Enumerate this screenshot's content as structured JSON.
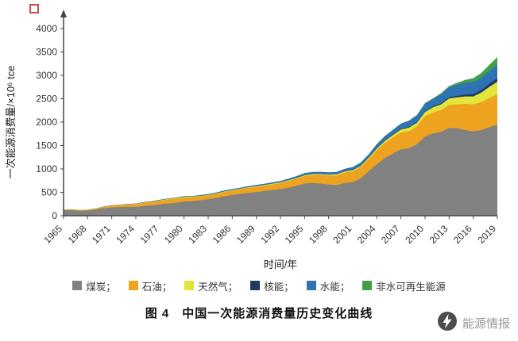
{
  "chart_data": {
    "type": "area",
    "stacked": true,
    "title": "",
    "xlabel": "时间/年",
    "ylabel": "一次能源消费量/×10⁶ tce",
    "ylim": [
      0,
      4000
    ],
    "ytick_step": 500,
    "xtick_every": 3,
    "grid": false,
    "legend_position": "bottom",
    "years": [
      1965,
      1966,
      1967,
      1968,
      1969,
      1970,
      1971,
      1972,
      1973,
      1974,
      1975,
      1976,
      1977,
      1978,
      1979,
      1980,
      1981,
      1982,
      1983,
      1984,
      1985,
      1986,
      1987,
      1988,
      1989,
      1990,
      1991,
      1992,
      1993,
      1994,
      1995,
      1996,
      1997,
      1998,
      1999,
      2000,
      2001,
      2002,
      2003,
      2004,
      2005,
      2006,
      2007,
      2008,
      2009,
      2010,
      2011,
      2012,
      2013,
      2014,
      2015,
      2016,
      2017,
      2018,
      2019
    ],
    "series": [
      {
        "name": "煤炭",
        "color": "#818181",
        "values": [
          114,
          120,
          104,
          110,
          130,
          160,
          176,
          184,
          190,
          188,
          210,
          220,
          240,
          262,
          275,
          305,
          310,
          330,
          350,
          380,
          415,
          440,
          465,
          490,
          505,
          527,
          550,
          570,
          600,
          640,
          688,
          700,
          686,
          667,
          658,
          700,
          720,
          800,
          950,
          1100,
          1230,
          1330,
          1420,
          1440,
          1530,
          1690,
          1760,
          1790,
          1880,
          1870,
          1830,
          1800,
          1830,
          1890,
          1950
        ]
      },
      {
        "name": "石油",
        "color": "#eea320",
        "values": [
          11,
          14,
          14,
          16,
          20,
          28,
          36,
          43,
          50,
          55,
          65,
          70,
          78,
          85,
          88,
          88,
          84,
          82,
          85,
          87,
          89,
          95,
          100,
          105,
          110,
          113,
          120,
          130,
          145,
          150,
          160,
          172,
          185,
          190,
          205,
          224,
          228,
          240,
          260,
          300,
          327,
          345,
          360,
          370,
          380,
          437,
          450,
          470,
          490,
          510,
          560,
          580,
          600,
          625,
          650
        ]
      },
      {
        "name": "天然气",
        "color": "#e3e53a",
        "values": [
          1,
          1,
          1,
          1,
          2,
          3,
          4,
          5,
          5,
          6,
          8,
          9,
          11,
          13,
          14,
          13,
          12,
          11,
          11,
          11,
          12,
          12,
          12,
          13,
          14,
          14,
          14,
          14,
          15,
          15,
          16,
          17,
          18,
          19,
          21,
          22,
          25,
          26,
          30,
          36,
          42,
          50,
          63,
          73,
          80,
          89,
          107,
          119,
          137,
          150,
          160,
          170,
          200,
          240,
          263
        ]
      },
      {
        "name": "核能",
        "color": "#1f3864",
        "values": [
          0,
          0,
          0,
          0,
          0,
          0,
          0,
          0,
          0,
          0,
          0,
          0,
          0,
          0,
          0,
          0,
          0,
          0,
          0,
          0,
          0,
          0,
          0,
          0,
          0,
          0,
          0,
          0,
          0,
          3,
          3,
          3,
          3,
          3,
          3,
          4,
          4,
          5,
          10,
          11,
          12,
          12,
          14,
          15,
          16,
          17,
          19,
          22,
          25,
          30,
          38,
          48,
          56,
          66,
          78
        ]
      },
      {
        "name": "水能",
        "color": "#2e74b5",
        "values": [
          2,
          2,
          2,
          2,
          3,
          5,
          6,
          6,
          7,
          8,
          11,
          11,
          11,
          10,
          11,
          13,
          15,
          17,
          19,
          19,
          21,
          21,
          22,
          24,
          27,
          29,
          28,
          29,
          34,
          38,
          42,
          42,
          44,
          47,
          47,
          50,
          62,
          65,
          64,
          80,
          90,
          98,
          110,
          130,
          139,
          163,
          156,
          194,
          208,
          240,
          252,
          263,
          265,
          272,
          288
        ]
      },
      {
        "name": "非水可再生能源",
        "color": "#43a047",
        "values": [
          0,
          0,
          0,
          0,
          0,
          0,
          0,
          0,
          0,
          0,
          0,
          0,
          0,
          0,
          0,
          0,
          0,
          0,
          0,
          0,
          0,
          0,
          0,
          0,
          0,
          0,
          0,
          0,
          0,
          0,
          0,
          0,
          0,
          0,
          0,
          1,
          1,
          1,
          1,
          1,
          2,
          3,
          4,
          6,
          9,
          12,
          18,
          24,
          32,
          40,
          62,
          78,
          100,
          130,
          161
        ]
      }
    ],
    "legend": [
      "煤炭；",
      "石油；",
      "天然气；",
      "核能；",
      "水能；",
      "非水可再生能源"
    ]
  },
  "caption": "图 4　中国一次能源消费量历史变化曲线",
  "watermark": {
    "text": "能源情报"
  }
}
